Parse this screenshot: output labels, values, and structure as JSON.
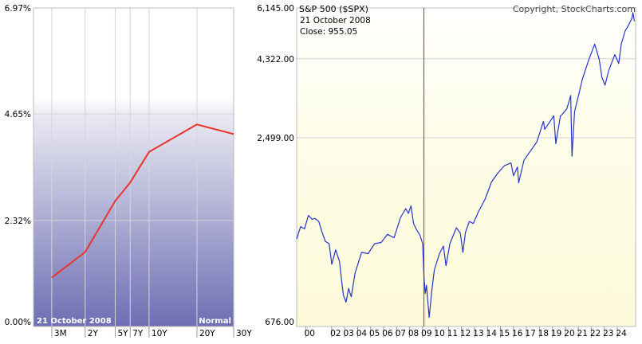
{
  "chart_data": [
    {
      "type": "line",
      "date_label": "21  October 2008",
      "shape_label": "Normal",
      "categories": [
        "3M",
        "2Y",
        "5Y",
        "7Y",
        "10Y",
        "20Y",
        "30Y"
      ],
      "category_years": [
        0.25,
        2,
        5,
        7,
        10,
        20,
        30
      ],
      "x_axis": {
        "min_years": 0,
        "max_years": 30,
        "scale": "sqrt"
      },
      "y_ticks": [
        "0.00%",
        "2.32%",
        "4.65%",
        "6.97%"
      ],
      "ylim": [
        0,
        6.97
      ],
      "series": [
        {
          "color": "#e8352c",
          "values": [
            1.07,
            1.63,
            2.75,
            3.15,
            3.82,
            4.42,
            4.21
          ]
        }
      ]
    },
    {
      "type": "line",
      "title": "S&P 500 ($SPX)",
      "copyright": "Copyright, StockCharts.com",
      "date_label": "21  October 2008",
      "close_label": "Close: 955.05",
      "y_scale": "log",
      "ylim": [
        676,
        6145
      ],
      "y_ticks": [
        "676.00",
        "2,499.00",
        "4,322.00",
        "6,145.00"
      ],
      "xlim": [
        1999.0,
        2025.1
      ],
      "x_ticks": [
        "00",
        "02",
        "03",
        "04",
        "05",
        "06",
        "07",
        "08",
        "09",
        "10",
        "11",
        "12",
        "13",
        "14",
        "15",
        "16",
        "17",
        "18",
        "19",
        "20",
        "21",
        "22",
        "23",
        "24"
      ],
      "x_tick_years": [
        2000,
        2002,
        2003,
        2004,
        2005,
        2006,
        2007,
        2008,
        2009,
        2010,
        2011,
        2012,
        2013,
        2014,
        2015,
        2016,
        2017,
        2018,
        2019,
        2020,
        2021,
        2022,
        2023,
        2024
      ],
      "marker_year": 2008.8,
      "line_color": "#2a33c8",
      "marker_color": "#cc2222",
      "series": [
        {
          "x": [
            1999.0,
            1999.3,
            1999.6,
            1999.9,
            2000.2,
            2000.4,
            2000.7,
            2000.9,
            2001.2,
            2001.5,
            2001.7,
            2002.0,
            2002.3,
            2002.5,
            2002.6,
            2002.8,
            2003.0,
            2003.2,
            2003.5,
            2004.0,
            2004.5,
            2005.0,
            2005.5,
            2006.0,
            2006.5,
            2007.0,
            2007.4,
            2007.6,
            2007.8,
            2008.0,
            2008.2,
            2008.5,
            2008.7,
            2008.8,
            2008.9,
            2009.0,
            2009.2,
            2009.4,
            2009.6,
            2010.0,
            2010.3,
            2010.5,
            2010.8,
            2011.3,
            2011.6,
            2011.8,
            2012.0,
            2012.3,
            2012.6,
            2013.0,
            2013.5,
            2014.0,
            2014.5,
            2015.0,
            2015.5,
            2015.7,
            2016.0,
            2016.1,
            2016.5,
            2017.0,
            2017.5,
            2018.0,
            2018.1,
            2018.8,
            2018.95,
            2019.3,
            2019.8,
            2020.1,
            2020.2,
            2020.4,
            2020.7,
            2021.0,
            2021.5,
            2021.95,
            2022.3,
            2022.5,
            2022.75,
            2023.0,
            2023.5,
            2023.8,
            2024.0,
            2024.3,
            2024.5,
            2024.8,
            2024.9,
            2025.0
          ],
          "values": [
            1240,
            1350,
            1330,
            1460,
            1420,
            1430,
            1400,
            1320,
            1220,
            1200,
            1040,
            1150,
            1060,
            900,
            840,
            800,
            880,
            830,
            980,
            1130,
            1120,
            1200,
            1210,
            1280,
            1250,
            1440,
            1530,
            1480,
            1560,
            1380,
            1330,
            1270,
            1200,
            955,
            850,
            900,
            720,
            860,
            1000,
            1120,
            1180,
            1030,
            1200,
            1340,
            1290,
            1130,
            1300,
            1400,
            1380,
            1500,
            1630,
            1840,
            1960,
            2060,
            2100,
            1920,
            2040,
            1830,
            2140,
            2280,
            2430,
            2800,
            2650,
            2910,
            2400,
            2900,
            3050,
            3350,
            2200,
            3000,
            3350,
            3750,
            4300,
            4780,
            4300,
            3800,
            3600,
            3950,
            4450,
            4180,
            4800,
            5250,
            5400,
            5700,
            5950,
            5600
          ]
        }
      ]
    }
  ]
}
